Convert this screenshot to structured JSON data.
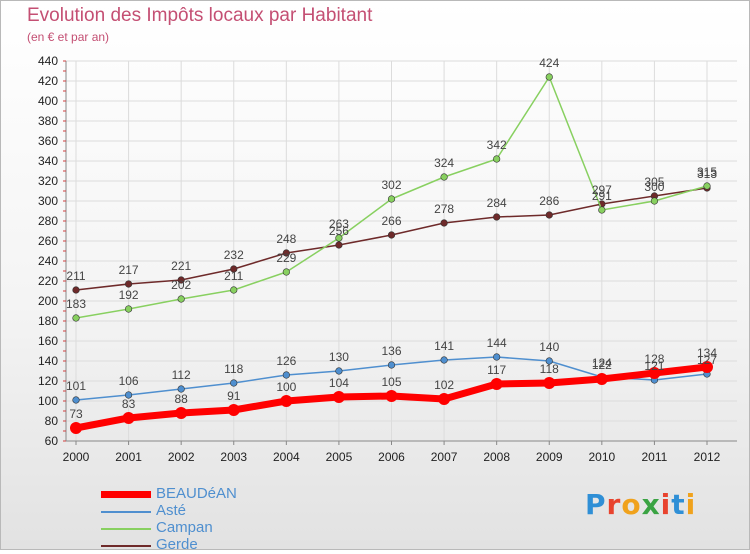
{
  "header": {
    "title": "Evolution des Impôts locaux par Habitant",
    "subtitle": "(en € et par an)"
  },
  "logo": {
    "letters": [
      "P",
      "r",
      "o",
      "x",
      "i",
      "t",
      "i"
    ],
    "colors": [
      "#2f8fd6",
      "#e8432e",
      "#f0a21c",
      "#3aa343",
      "#e8432e",
      "#2f8fd6",
      "#f0a21c"
    ]
  },
  "chart_data": {
    "type": "line",
    "title": "Evolution des Impôts locaux par Habitant",
    "subtitle": "(en € et par an)",
    "x": [
      "2000",
      "2001",
      "2002",
      "2003",
      "2004",
      "2005",
      "2006",
      "2007",
      "2008",
      "2009",
      "2010",
      "2011",
      "2012"
    ],
    "ylim": [
      60,
      440
    ],
    "yticks": [
      60,
      80,
      100,
      120,
      140,
      160,
      180,
      200,
      220,
      240,
      260,
      280,
      300,
      320,
      340,
      360,
      380,
      400,
      420,
      440
    ],
    "grid": true,
    "legend_position": "bottom-left",
    "series": [
      {
        "name": "BEAUDéAN",
        "color": "#ff0000",
        "values": [
          73,
          83,
          88,
          91,
          100,
          104,
          105,
          102,
          117,
          118,
          122,
          128,
          134
        ]
      },
      {
        "name": "Asté",
        "color": "#4f8fcf",
        "values": [
          101,
          106,
          112,
          118,
          126,
          130,
          136,
          141,
          144,
          140,
          124,
          121,
          127
        ]
      },
      {
        "name": "Campan",
        "color": "#88d060",
        "values": [
          183,
          192,
          202,
          211,
          229,
          263,
          302,
          324,
          342,
          424,
          291,
          300,
          315
        ]
      },
      {
        "name": "Gerde",
        "color": "#6e2a2a",
        "values": [
          211,
          217,
          221,
          232,
          248,
          256,
          266,
          278,
          284,
          286,
          297,
          305,
          313
        ]
      }
    ],
    "labels": {
      "BEAUDéAN": [
        "73",
        "83",
        "88",
        "91",
        "100",
        "104",
        "105",
        "102",
        "117",
        "118",
        "122",
        "128",
        "134"
      ],
      "Asté": [
        "101",
        "106",
        "112",
        "118",
        "126",
        "130",
        "136",
        "141",
        "144",
        "140",
        "124",
        "121",
        "127"
      ],
      "Campan": [
        "183",
        "192",
        "202",
        "211",
        "229",
        "263",
        "302",
        "324",
        "342",
        "424",
        "291",
        "300",
        "315"
      ],
      "Gerde": [
        "211",
        "217",
        "221",
        "232",
        "248",
        "256",
        "266",
        "278",
        "284",
        "286",
        "297",
        "305",
        "313"
      ]
    }
  }
}
